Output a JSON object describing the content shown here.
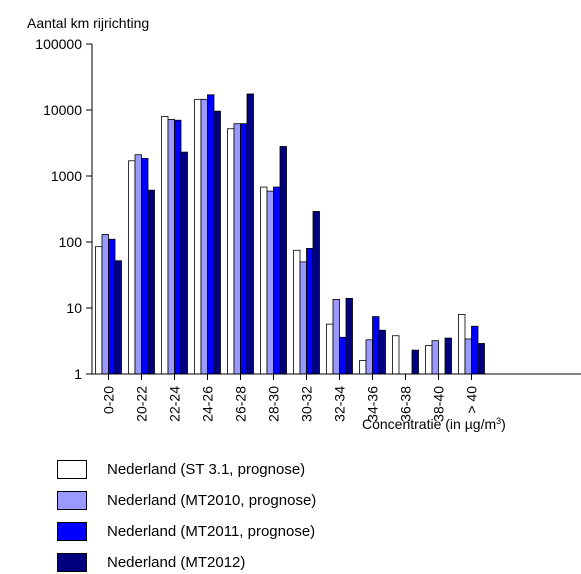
{
  "chart_data": {
    "type": "bar",
    "ylabel": "Aantal km rijrichting",
    "xlabel_prefix": "Concentratie (in µg/m",
    "xlabel_sup": "3",
    "xlabel_suffix": ")",
    "yscale": "log",
    "ylim": [
      1,
      100000
    ],
    "yticks": [
      "1",
      "10",
      "100",
      "1000",
      "10000",
      "100000"
    ],
    "ytick_values": [
      1,
      10,
      100,
      1000,
      10000,
      100000
    ],
    "categories": [
      "0-20",
      "20-22",
      "22-24",
      "24-26",
      "26-28",
      "28-30",
      "30-32",
      "32-34",
      "34-36",
      "36-38",
      "38-40",
      "> 40"
    ],
    "series": [
      {
        "name": "Nederland (ST 3.1, prognose)",
        "color": "#ffffff",
        "values": [
          85,
          1700,
          8000,
          14500,
          5200,
          680,
          75,
          5.7,
          1.6,
          3.8,
          2.7,
          8
        ]
      },
      {
        "name": "Nederland (MT2010, prognose)",
        "color": "#9999ff",
        "values": [
          130,
          2100,
          7200,
          14500,
          6200,
          590,
          50,
          13.5,
          3.3,
          1,
          3.2,
          3.4
        ]
      },
      {
        "name": "Nederland (MT2011, prognose)",
        "color": "#0000ff",
        "values": [
          110,
          1850,
          7000,
          17000,
          6200,
          680,
          80,
          3.6,
          7.4,
          1,
          1,
          5.3
        ]
      },
      {
        "name": "Nederland (MT2012)",
        "color": "#000080",
        "values": [
          52,
          610,
          2300,
          9600,
          17500,
          2800,
          290,
          14,
          4.6,
          2.3,
          3.5,
          2.9
        ]
      }
    ]
  }
}
